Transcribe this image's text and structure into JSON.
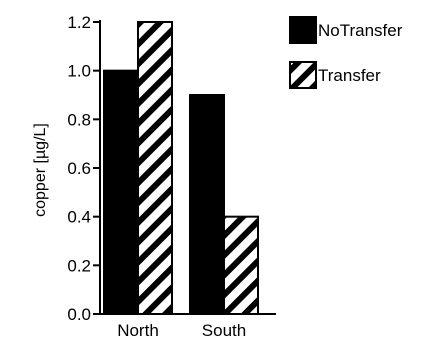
{
  "chart_data": {
    "type": "bar",
    "title": "",
    "xlabel": "",
    "ylabel": "copper [µg/L]",
    "categories": [
      "North",
      "South"
    ],
    "series": [
      {
        "name": "NoTransfer",
        "values": [
          1.0,
          0.9
        ],
        "fill": "solid",
        "color": "#000000"
      },
      {
        "name": "Transfer",
        "values": [
          1.2,
          0.4
        ],
        "fill": "hatched",
        "color": "#000000"
      }
    ],
    "ylim": [
      0,
      1.2
    ],
    "yticks": [
      "0.0",
      "0.2",
      "0.4",
      "0.6",
      "0.8",
      "1.0",
      "1.2"
    ],
    "grid": false,
    "legend_position": "top-right"
  }
}
